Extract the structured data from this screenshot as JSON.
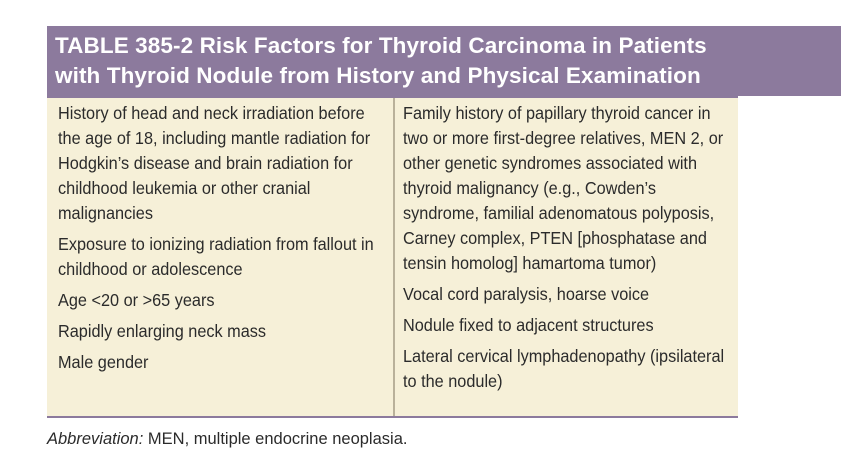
{
  "table": {
    "title": "TABLE 385-2 Risk Factors for Thyroid Carcinoma in Patients\nwith Thyroid Nodule from History and Physical Examination",
    "left_column": [
      "History of head and neck irradiation before the age of 18, including mantle radiation for Hodgkin’s disease and brain radiation for childhood leukemia or other cranial malignancies",
      "Exposure to ionizing radiation from fallout in childhood or adolescence",
      "Age <20 or >65 years",
      "Rapidly enlarging neck mass",
      "Male gender"
    ],
    "right_column": [
      "Family history of papillary thyroid cancer in two or more first-degree relatives, MEN 2, or other genetic syndromes associated with thyroid malignancy (e.g., Cowden’s syndrome, familial adenomatous polyposis, Carney complex, PTEN [phosphatase and tensin homolog] hamartoma tumor)",
      "Vocal cord paralysis, hoarse voice",
      "Nodule fixed to adjacent structures",
      "Lateral cervical lymphadenopathy (ipsilateral to the nodule)"
    ]
  },
  "footnote": {
    "label": "Abbreviation:",
    "text": " MEN, multiple endocrine neoplasia."
  },
  "colors": {
    "title_background": "#8c7a9d",
    "title_text": "#ffffff",
    "table_background": "#f6f0d8",
    "body_text": "#2b2b2b"
  }
}
